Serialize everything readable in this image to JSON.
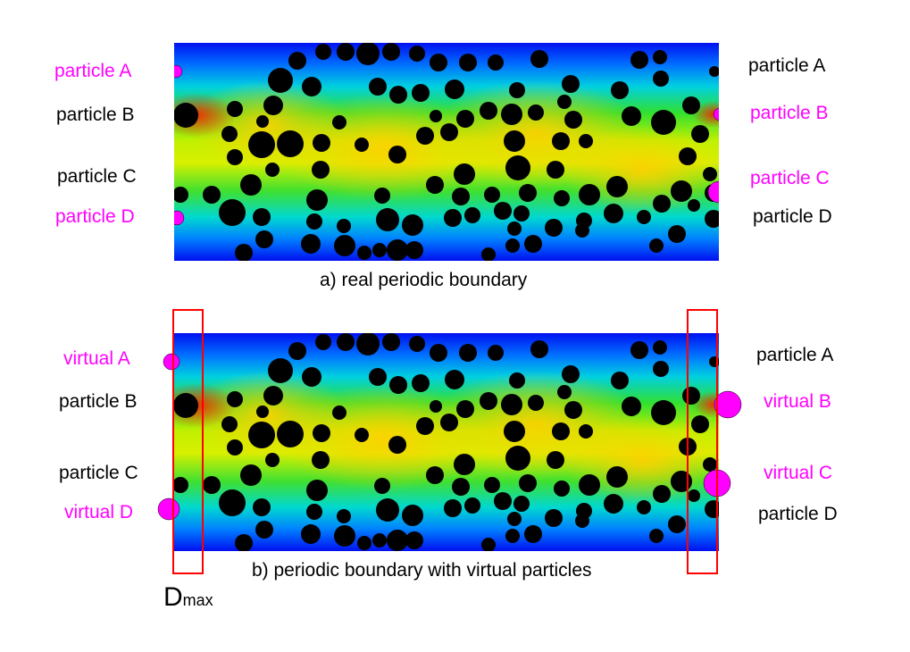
{
  "panel_a": {
    "caption": "a) real periodic boundary",
    "left_labels": [
      {
        "text": "particle A",
        "color": "#ff00ff"
      },
      {
        "text": "particle B",
        "color": "#000000"
      },
      {
        "text": "particle C",
        "color": "#000000"
      },
      {
        "text": "particle D",
        "color": "#ff00ff"
      }
    ],
    "right_labels": [
      {
        "text": "particle A",
        "color": "#000000"
      },
      {
        "text": "particle B",
        "color": "#ff00ff"
      },
      {
        "text": "particle C",
        "color": "#ff00ff"
      },
      {
        "text": "particle D",
        "color": "#000000"
      }
    ]
  },
  "panel_b": {
    "caption": "b) periodic boundary with virtual particles",
    "left_labels": [
      {
        "text": "virtual A",
        "color": "#ff00ff"
      },
      {
        "text": "particle B",
        "color": "#000000"
      },
      {
        "text": "particle C",
        "color": "#000000"
      },
      {
        "text": "virtual D",
        "color": "#ff00ff"
      }
    ],
    "right_labels": [
      {
        "text": "particle A",
        "color": "#000000"
      },
      {
        "text": "virtual B",
        "color": "#ff00ff"
      },
      {
        "text": "virtual C",
        "color": "#ff00ff"
      },
      {
        "text": "particle D",
        "color": "#000000"
      }
    ]
  },
  "dmax": {
    "main": "D",
    "sub": "max"
  },
  "colors": {
    "virtual": "#ff00ff",
    "particle": "#000000",
    "boundary_box": "#ff0000"
  }
}
